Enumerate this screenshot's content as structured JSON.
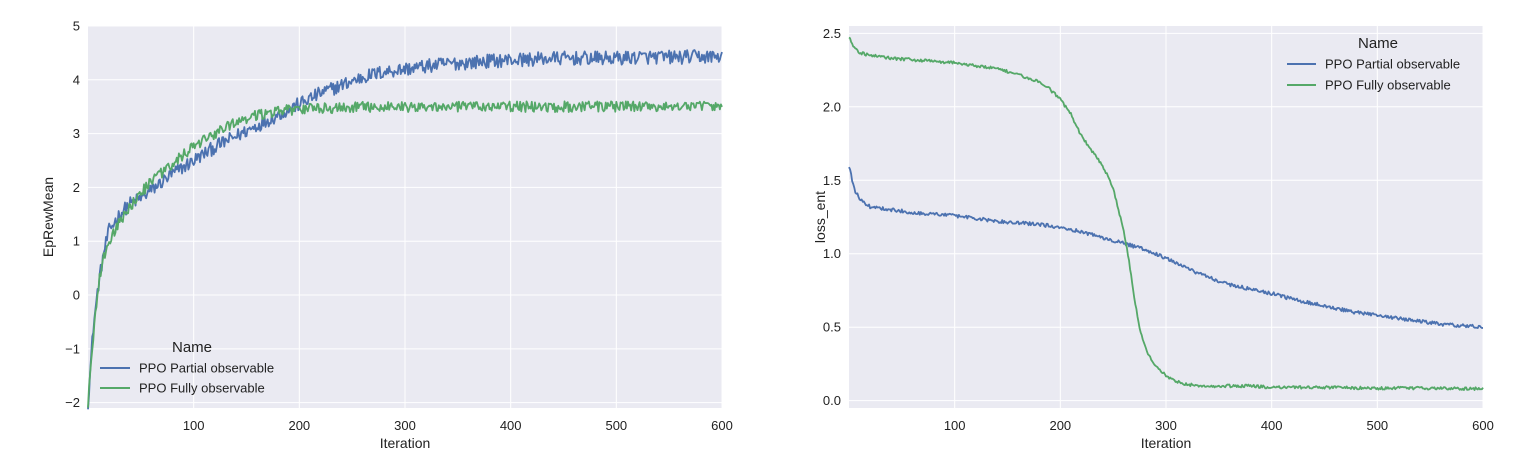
{
  "colors": {
    "background": "#eaeaf2",
    "grid": "#ffffff",
    "partial": "#4c72b0",
    "fully": "#55a868"
  },
  "chart_data": [
    {
      "type": "line",
      "xlabel": "Iteration",
      "ylabel": "EpRewMean",
      "xlim": [
        0,
        600
      ],
      "ylim": [
        -2.1,
        5.0
      ],
      "xticks": [
        "100",
        "200",
        "300",
        "400",
        "500",
        "600"
      ],
      "yticks": [
        "−2",
        "−1",
        "0",
        "1",
        "2",
        "3",
        "4",
        "5"
      ],
      "grid": true,
      "legend": {
        "title": "Name",
        "position": "lower-left"
      },
      "series": [
        {
          "name": "PPO Partial observable",
          "color": "#4c72b0",
          "x": [
            0,
            5,
            10,
            15,
            20,
            30,
            40,
            50,
            60,
            80,
            100,
            120,
            140,
            160,
            180,
            200,
            220,
            240,
            260,
            280,
            300,
            320,
            340,
            360,
            380,
            400,
            420,
            440,
            460,
            480,
            500,
            520,
            540,
            560,
            580,
            600
          ],
          "y": [
            -2.0,
            -0.6,
            0.2,
            0.8,
            1.2,
            1.5,
            1.7,
            1.8,
            1.95,
            2.25,
            2.5,
            2.75,
            2.95,
            3.15,
            3.35,
            3.55,
            3.75,
            3.9,
            4.05,
            4.15,
            4.2,
            4.25,
            4.3,
            4.32,
            4.35,
            4.37,
            4.38,
            4.4,
            4.4,
            4.4,
            4.4,
            4.42,
            4.42,
            4.42,
            4.43,
            4.43
          ],
          "noise": 0.13
        },
        {
          "name": "PPO Fully observable",
          "color": "#55a868",
          "x": [
            0,
            5,
            10,
            15,
            20,
            30,
            40,
            50,
            60,
            80,
            100,
            120,
            140,
            160,
            180,
            200,
            220,
            240,
            260,
            280,
            300,
            320,
            340,
            360,
            380,
            400,
            420,
            440,
            460,
            480,
            500,
            520,
            540,
            560,
            580,
            600
          ],
          "y": [
            -2.0,
            -0.8,
            0.2,
            0.7,
            1.0,
            1.35,
            1.65,
            1.9,
            2.1,
            2.45,
            2.75,
            3.0,
            3.2,
            3.35,
            3.42,
            3.45,
            3.47,
            3.48,
            3.5,
            3.5,
            3.5,
            3.5,
            3.5,
            3.5,
            3.5,
            3.5,
            3.5,
            3.5,
            3.5,
            3.5,
            3.5,
            3.5,
            3.5,
            3.5,
            3.5,
            3.5
          ],
          "noise": 0.1
        }
      ]
    },
    {
      "type": "line",
      "xlabel": "Iteration",
      "ylabel": "loss_ent",
      "xlim": [
        0,
        600
      ],
      "ylim": [
        -0.05,
        2.55
      ],
      "xticks": [
        "100",
        "200",
        "300",
        "400",
        "500",
        "600"
      ],
      "yticks": [
        "0.0",
        "0.5",
        "1.0",
        "1.5",
        "2.0",
        "2.5"
      ],
      "grid": true,
      "legend": {
        "title": "Name",
        "position": "upper-right"
      },
      "series": [
        {
          "name": "PPO Partial observable",
          "color": "#4c72b0",
          "x": [
            0,
            3,
            6,
            10,
            15,
            20,
            30,
            40,
            50,
            60,
            80,
            100,
            120,
            140,
            160,
            180,
            200,
            220,
            240,
            260,
            280,
            300,
            320,
            340,
            360,
            380,
            400,
            420,
            440,
            460,
            480,
            500,
            520,
            540,
            560,
            580,
            600
          ],
          "y": [
            1.6,
            1.5,
            1.42,
            1.38,
            1.34,
            1.32,
            1.31,
            1.3,
            1.29,
            1.28,
            1.27,
            1.26,
            1.24,
            1.22,
            1.21,
            1.2,
            1.18,
            1.15,
            1.11,
            1.07,
            1.03,
            0.97,
            0.9,
            0.84,
            0.79,
            0.76,
            0.73,
            0.69,
            0.66,
            0.63,
            0.6,
            0.58,
            0.56,
            0.54,
            0.52,
            0.51,
            0.5
          ],
          "noise": 0.012
        },
        {
          "name": "PPO Fully observable",
          "color": "#55a868",
          "x": [
            0,
            5,
            10,
            20,
            40,
            60,
            80,
            100,
            120,
            140,
            160,
            180,
            190,
            200,
            210,
            220,
            230,
            240,
            250,
            255,
            260,
            265,
            270,
            275,
            280,
            285,
            290,
            300,
            310,
            320,
            340,
            360,
            380,
            400,
            450,
            500,
            550,
            600
          ],
          "y": [
            2.48,
            2.4,
            2.37,
            2.35,
            2.33,
            2.32,
            2.31,
            2.3,
            2.28,
            2.26,
            2.22,
            2.17,
            2.12,
            2.05,
            1.95,
            1.8,
            1.7,
            1.6,
            1.45,
            1.3,
            1.15,
            0.95,
            0.7,
            0.5,
            0.37,
            0.29,
            0.23,
            0.17,
            0.13,
            0.11,
            0.1,
            0.1,
            0.1,
            0.09,
            0.09,
            0.085,
            0.085,
            0.08
          ],
          "noise": 0.01
        }
      ]
    }
  ]
}
